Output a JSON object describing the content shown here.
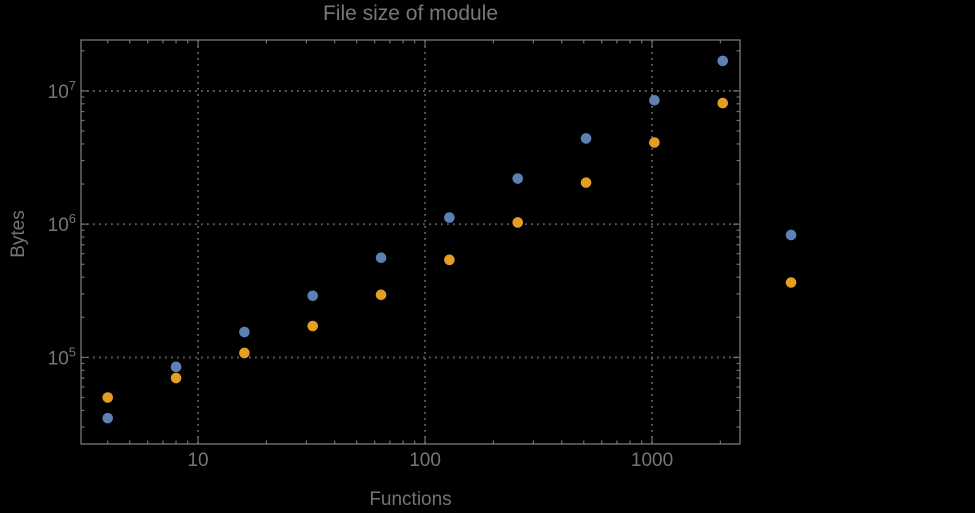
{
  "chart_data": {
    "type": "scatter",
    "title": "File size of module",
    "xlabel": "Functions",
    "ylabel": "Bytes",
    "x_scale": "log",
    "y_scale": "log",
    "xlim": [
      3.05,
      2440
    ],
    "ylim": [
      22400,
      24100000
    ],
    "grid": "dotted",
    "legend": "none",
    "x": [
      4,
      8,
      16,
      32,
      64,
      128,
      256,
      512,
      1024,
      2048,
      4096
    ],
    "series": [
      {
        "name": "series-blue",
        "color": "#5E81B5",
        "values": [
          35000,
          85000,
          155000,
          290000,
          560000,
          1120000,
          2200000,
          4400000,
          8500000,
          16800000,
          830000
        ]
      },
      {
        "name": "series-orange",
        "color": "#E59E24",
        "values": [
          50000,
          70000,
          108000,
          172000,
          295000,
          540000,
          1030000,
          2050000,
          4100000,
          8100000,
          365000
        ]
      }
    ],
    "x_ticks": {
      "values": [
        10,
        100,
        1000
      ],
      "labels": [
        "10",
        "100",
        "1000"
      ]
    },
    "y_ticks": {
      "values": [
        100000,
        1000000,
        10000000
      ],
      "base": "10",
      "exponents": [
        "5",
        "6",
        "7"
      ]
    },
    "colors": {
      "background": "#000000",
      "frame": "#707070",
      "grid": "#5F5F5F",
      "text": "#767676"
    }
  }
}
